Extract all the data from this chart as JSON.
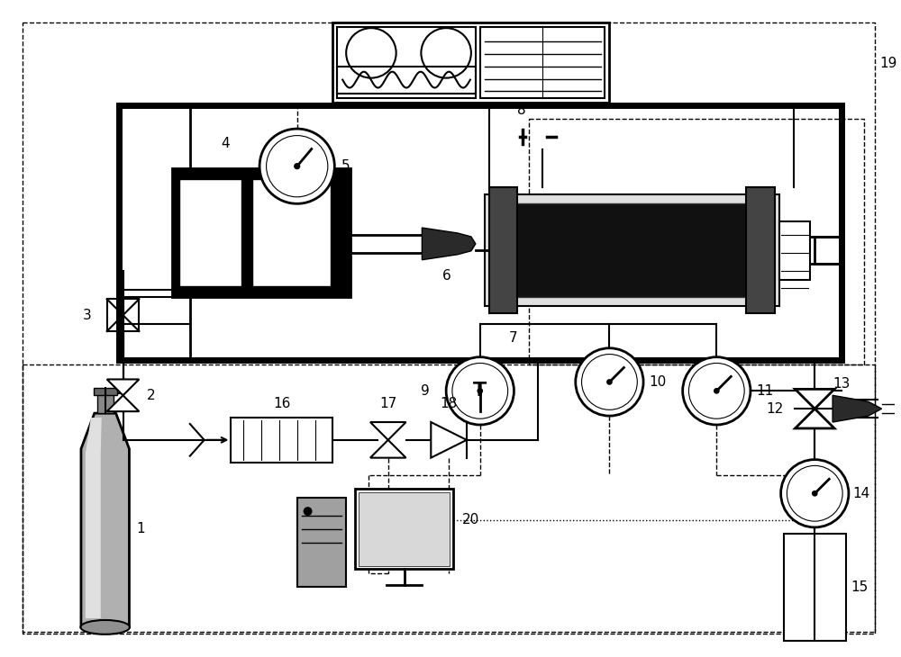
{
  "fig_width": 10.0,
  "fig_height": 7.3,
  "dpi": 100,
  "bg_color": "#ffffff"
}
